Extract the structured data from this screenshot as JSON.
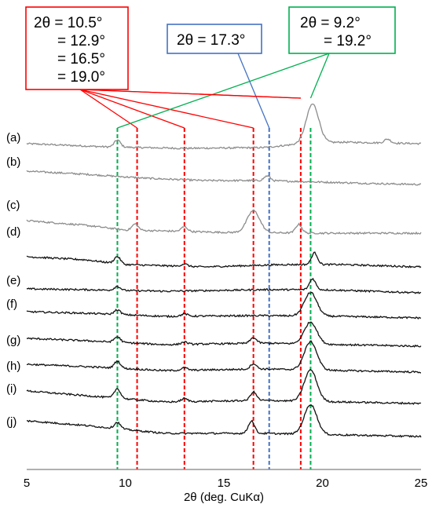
{
  "chart_data": {
    "type": "line",
    "title": "",
    "xlabel": "2θ (deg. CuKα)",
    "ylabel": "",
    "xlim": [
      5,
      25
    ],
    "x_ticks": [
      "5",
      "10",
      "15",
      "20",
      "25"
    ],
    "grid": false,
    "series": [
      {
        "label": "(a)",
        "color": "#8c8c8c",
        "peaks": [
          [
            9.6,
            9
          ],
          [
            19.5,
            50
          ],
          [
            23.3,
            5
          ]
        ],
        "baseline": [
          [
            5,
            0
          ],
          [
            9,
            -4
          ],
          [
            13,
            -6
          ],
          [
            17,
            -5
          ],
          [
            19,
            0
          ],
          [
            21,
            2
          ],
          [
            25,
            0
          ]
        ]
      },
      {
        "label": "(b)",
        "color": "#8c8c8c",
        "peaks": [
          [
            17.2,
            6
          ]
        ],
        "baseline": [
          [
            5,
            14
          ],
          [
            8,
            10
          ],
          [
            11,
            5
          ],
          [
            14,
            2
          ],
          [
            17,
            2
          ],
          [
            20,
            0
          ],
          [
            23,
            -2
          ],
          [
            25,
            -3
          ]
        ]
      },
      {
        "label": "(c)",
        "color": "#8c8c8c",
        "peaks": [
          [
            10.5,
            8
          ],
          [
            13.0,
            6
          ],
          [
            16.5,
            28
          ],
          [
            18.8,
            11
          ]
        ],
        "baseline": [
          [
            5,
            12
          ],
          [
            8,
            6
          ],
          [
            10,
            0
          ],
          [
            15,
            -3
          ],
          [
            20,
            -4
          ],
          [
            25,
            -4
          ]
        ]
      },
      {
        "label": "(d)",
        "color": "#111111",
        "peaks": [
          [
            9.6,
            9
          ],
          [
            13.0,
            3
          ],
          [
            19.6,
            15
          ]
        ],
        "baseline": [
          [
            5,
            10
          ],
          [
            8,
            6
          ],
          [
            10,
            0
          ],
          [
            14,
            -3
          ],
          [
            18,
            0
          ],
          [
            21,
            0
          ],
          [
            25,
            -3
          ]
        ]
      },
      {
        "label": "(e)",
        "color": "#111111",
        "peaks": [
          [
            9.6,
            5
          ],
          [
            19.5,
            14
          ]
        ],
        "baseline": [
          [
            5,
            3
          ],
          [
            8,
            2
          ],
          [
            12,
            0
          ],
          [
            17,
            2
          ],
          [
            20,
            2
          ],
          [
            25,
            -2
          ]
        ]
      },
      {
        "label": "(f)",
        "color": "#111111",
        "peaks": [
          [
            9.6,
            6
          ],
          [
            13.0,
            3
          ],
          [
            19.4,
            30
          ]
        ],
        "baseline": [
          [
            5,
            6
          ],
          [
            8,
            4
          ],
          [
            12,
            0
          ],
          [
            17,
            1
          ],
          [
            21,
            0
          ],
          [
            25,
            -2
          ]
        ]
      },
      {
        "label": "(g)",
        "color": "#111111",
        "peaks": [
          [
            9.6,
            7
          ],
          [
            13.0,
            3
          ],
          [
            16.5,
            7
          ],
          [
            19.4,
            28
          ]
        ],
        "baseline": [
          [
            5,
            6
          ],
          [
            8,
            3
          ],
          [
            12,
            -2
          ],
          [
            17,
            0
          ],
          [
            21,
            -2
          ],
          [
            25,
            -4
          ]
        ]
      },
      {
        "label": "(h)",
        "color": "#111111",
        "peaks": [
          [
            9.6,
            9
          ],
          [
            13.0,
            3
          ],
          [
            16.5,
            7
          ],
          [
            19.4,
            36
          ]
        ],
        "baseline": [
          [
            5,
            6
          ],
          [
            8,
            3
          ],
          [
            12,
            -2
          ],
          [
            17,
            0
          ],
          [
            21,
            -2
          ],
          [
            25,
            -4
          ]
        ]
      },
      {
        "label": "(i)",
        "color": "#111111",
        "peaks": [
          [
            9.6,
            12
          ],
          [
            13.0,
            4
          ],
          [
            16.5,
            11
          ],
          [
            19.4,
            40
          ]
        ],
        "baseline": [
          [
            5,
            10
          ],
          [
            8,
            4
          ],
          [
            12,
            -4
          ],
          [
            17,
            -2
          ],
          [
            21,
            -4
          ],
          [
            25,
            -6
          ]
        ]
      },
      {
        "label": "(j)",
        "color": "#111111",
        "peaks": [
          [
            9.6,
            8
          ],
          [
            16.4,
            16
          ],
          [
            19.4,
            38
          ]
        ],
        "baseline": [
          [
            5,
            12
          ],
          [
            8,
            6
          ],
          [
            12,
            -4
          ],
          [
            17,
            -4
          ],
          [
            21,
            -6
          ],
          [
            25,
            -8
          ]
        ]
      }
    ],
    "reference_lines": [
      {
        "x": 9.6,
        "color": "#00b050"
      },
      {
        "x": 10.6,
        "color": "#ff0000"
      },
      {
        "x": 13.0,
        "color": "#ff0000"
      },
      {
        "x": 16.5,
        "color": "#ff0000"
      },
      {
        "x": 17.3,
        "color": "#4472c4"
      },
      {
        "x": 18.9,
        "color": "#ff0000"
      },
      {
        "x": 19.4,
        "color": "#00b050"
      }
    ],
    "annotations": [
      {
        "color": "#ff0000",
        "lines": [
          "2θ = 10.5°",
          "= 12.9°",
          "= 16.5°",
          "= 19.0°"
        ]
      },
      {
        "color": "#4472c4",
        "lines": [
          "2θ = 17.3°"
        ]
      },
      {
        "color": "#00b050",
        "lines": [
          "2θ = 9.2°",
          "= 19.2°"
        ]
      }
    ]
  }
}
